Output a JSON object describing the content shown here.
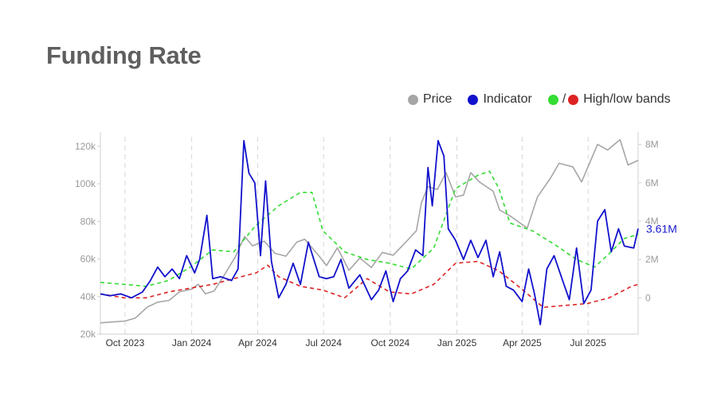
{
  "title": "Funding Rate",
  "legend": {
    "price": "Price",
    "indicator": "Indicator",
    "bands_sep": "/",
    "bands": "High/low bands"
  },
  "colors": {
    "price": "#a6a6a6",
    "indicator": "#1111cc",
    "high_band": "#33dd33",
    "low_band": "#dd2222"
  },
  "chart_data": {
    "type": "line",
    "x_ticks": [
      {
        "label": "Oct 2023",
        "date": "2023-10-01"
      },
      {
        "label": "Jan 2024",
        "date": "2024-01-01"
      },
      {
        "label": "Apr 2024",
        "date": "2024-04-01"
      },
      {
        "label": "Jul 2024",
        "date": "2024-07-01"
      },
      {
        "label": "Oct 2024",
        "date": "2024-10-01"
      },
      {
        "label": "Jan 2025",
        "date": "2025-01-01"
      },
      {
        "label": "Apr 2025",
        "date": "2025-04-01"
      },
      {
        "label": "Jul 2025",
        "date": "2025-07-01"
      }
    ],
    "xlim": [
      "2023-08-28",
      "2025-09-08"
    ],
    "left_axis": {
      "ticks": [
        "20k",
        "40k",
        "60k",
        "80k",
        "100k",
        "120k"
      ],
      "ylim": [
        20000,
        125000
      ]
    },
    "right_axis": {
      "ticks": [
        "0",
        "2M",
        "4M",
        "6M",
        "8M"
      ],
      "ylim": [
        -1900000,
        8400000
      ]
    },
    "grid": "vertical dashed",
    "last_value_label": "3.61M",
    "series": [
      {
        "name": "Price",
        "axis": "left",
        "points": [
          [
            "2023-08-28",
            26000
          ],
          [
            "2023-09-15",
            26500
          ],
          [
            "2023-10-01",
            27000
          ],
          [
            "2023-10-15",
            28500
          ],
          [
            "2023-11-01",
            34500
          ],
          [
            "2023-11-15",
            37000
          ],
          [
            "2023-12-01",
            38000
          ],
          [
            "2023-12-15",
            42500
          ],
          [
            "2024-01-01",
            44000
          ],
          [
            "2024-01-10",
            46500
          ],
          [
            "2024-01-20",
            41500
          ],
          [
            "2024-02-01",
            43000
          ],
          [
            "2024-02-15",
            51500
          ],
          [
            "2024-03-01",
            61000
          ],
          [
            "2024-03-14",
            72000
          ],
          [
            "2024-03-25",
            67000
          ],
          [
            "2024-04-10",
            69500
          ],
          [
            "2024-04-25",
            63000
          ],
          [
            "2024-05-10",
            61500
          ],
          [
            "2024-05-25",
            69000
          ],
          [
            "2024-06-05",
            70500
          ],
          [
            "2024-06-25",
            61500
          ],
          [
            "2024-07-05",
            56500
          ],
          [
            "2024-07-20",
            66000
          ],
          [
            "2024-08-05",
            54000
          ],
          [
            "2024-08-20",
            60500
          ],
          [
            "2024-09-05",
            55500
          ],
          [
            "2024-09-20",
            63500
          ],
          [
            "2024-10-05",
            62000
          ],
          [
            "2024-10-20",
            68000
          ],
          [
            "2024-11-06",
            75000
          ],
          [
            "2024-11-13",
            90000
          ],
          [
            "2024-11-22",
            98500
          ],
          [
            "2024-12-05",
            97000
          ],
          [
            "2024-12-17",
            106000
          ],
          [
            "2024-12-30",
            93000
          ],
          [
            "2025-01-10",
            94000
          ],
          [
            "2025-01-20",
            106000
          ],
          [
            "2025-02-01",
            101000
          ],
          [
            "2025-02-20",
            96000
          ],
          [
            "2025-03-01",
            86000
          ],
          [
            "2025-03-15",
            83000
          ],
          [
            "2025-04-08",
            76500
          ],
          [
            "2025-04-22",
            93000
          ],
          [
            "2025-05-10",
            103000
          ],
          [
            "2025-05-22",
            111000
          ],
          [
            "2025-06-10",
            109000
          ],
          [
            "2025-06-22",
            101000
          ],
          [
            "2025-07-14",
            121000
          ],
          [
            "2025-07-28",
            118000
          ],
          [
            "2025-08-14",
            123500
          ],
          [
            "2025-08-25",
            110000
          ],
          [
            "2025-09-08",
            112500
          ]
        ]
      },
      {
        "name": "Indicator",
        "axis": "right",
        "points": [
          [
            "2023-08-28",
            200000
          ],
          [
            "2023-09-10",
            100000
          ],
          [
            "2023-09-25",
            200000
          ],
          [
            "2023-10-10",
            0
          ],
          [
            "2023-10-25",
            300000
          ],
          [
            "2023-11-05",
            900000
          ],
          [
            "2023-11-15",
            1600000
          ],
          [
            "2023-11-25",
            1100000
          ],
          [
            "2023-12-05",
            1500000
          ],
          [
            "2023-12-15",
            1000000
          ],
          [
            "2023-12-25",
            2200000
          ],
          [
            "2024-01-05",
            1300000
          ],
          [
            "2024-01-12",
            2000000
          ],
          [
            "2024-01-22",
            4300000
          ],
          [
            "2024-01-30",
            1000000
          ],
          [
            "2024-02-10",
            1100000
          ],
          [
            "2024-02-25",
            900000
          ],
          [
            "2024-03-05",
            1500000
          ],
          [
            "2024-03-13",
            8200000
          ],
          [
            "2024-03-20",
            6500000
          ],
          [
            "2024-03-28",
            6000000
          ],
          [
            "2024-04-05",
            2200000
          ],
          [
            "2024-04-12",
            6100000
          ],
          [
            "2024-04-20",
            1900000
          ],
          [
            "2024-04-30",
            0
          ],
          [
            "2024-05-10",
            700000
          ],
          [
            "2024-05-20",
            1800000
          ],
          [
            "2024-05-30",
            700000
          ],
          [
            "2024-06-10",
            2900000
          ],
          [
            "2024-06-25",
            1100000
          ],
          [
            "2024-07-05",
            1000000
          ],
          [
            "2024-07-15",
            1100000
          ],
          [
            "2024-07-25",
            2000000
          ],
          [
            "2024-08-05",
            500000
          ],
          [
            "2024-08-20",
            1200000
          ],
          [
            "2024-09-05",
            -100000
          ],
          [
            "2024-09-15",
            400000
          ],
          [
            "2024-09-25",
            1400000
          ],
          [
            "2024-10-05",
            -200000
          ],
          [
            "2024-10-15",
            1000000
          ],
          [
            "2024-10-25",
            1400000
          ],
          [
            "2024-11-05",
            2500000
          ],
          [
            "2024-11-15",
            2200000
          ],
          [
            "2024-11-22",
            6800000
          ],
          [
            "2024-11-28",
            4800000
          ],
          [
            "2024-12-06",
            8200000
          ],
          [
            "2024-12-14",
            7400000
          ],
          [
            "2024-12-20",
            3600000
          ],
          [
            "2024-12-30",
            3000000
          ],
          [
            "2025-01-10",
            2000000
          ],
          [
            "2025-01-20",
            3000000
          ],
          [
            "2025-01-30",
            2100000
          ],
          [
            "2025-02-10",
            3000000
          ],
          [
            "2025-02-20",
            1100000
          ],
          [
            "2025-03-01",
            2400000
          ],
          [
            "2025-03-10",
            600000
          ],
          [
            "2025-03-20",
            400000
          ],
          [
            "2025-04-01",
            -200000
          ],
          [
            "2025-04-10",
            1500000
          ],
          [
            "2025-04-18",
            200000
          ],
          [
            "2025-04-26",
            -1400000
          ],
          [
            "2025-05-05",
            1500000
          ],
          [
            "2025-05-15",
            2200000
          ],
          [
            "2025-05-25",
            1100000
          ],
          [
            "2025-06-05",
            -100000
          ],
          [
            "2025-06-15",
            2600000
          ],
          [
            "2025-06-25",
            -300000
          ],
          [
            "2025-07-05",
            400000
          ],
          [
            "2025-07-14",
            4000000
          ],
          [
            "2025-07-24",
            4600000
          ],
          [
            "2025-08-02",
            2400000
          ],
          [
            "2025-08-12",
            3600000
          ],
          [
            "2025-08-20",
            2700000
          ],
          [
            "2025-09-02",
            2600000
          ],
          [
            "2025-09-08",
            3610000
          ]
        ]
      },
      {
        "name": "High band",
        "axis": "right",
        "points": [
          [
            "2023-08-28",
            800000
          ],
          [
            "2023-09-30",
            700000
          ],
          [
            "2023-10-30",
            600000
          ],
          [
            "2023-11-30",
            900000
          ],
          [
            "2023-12-30",
            1600000
          ],
          [
            "2024-01-30",
            2500000
          ],
          [
            "2024-02-28",
            2400000
          ],
          [
            "2024-03-30",
            3800000
          ],
          [
            "2024-04-30",
            4800000
          ],
          [
            "2024-05-30",
            5500000
          ],
          [
            "2024-06-15",
            5500000
          ],
          [
            "2024-06-30",
            3500000
          ],
          [
            "2024-07-30",
            2400000
          ],
          [
            "2024-08-30",
            2000000
          ],
          [
            "2024-09-30",
            1800000
          ],
          [
            "2024-10-30",
            1500000
          ],
          [
            "2024-11-30",
            2600000
          ],
          [
            "2024-12-30",
            5700000
          ],
          [
            "2025-01-30",
            6400000
          ],
          [
            "2025-02-15",
            6600000
          ],
          [
            "2025-02-28",
            5700000
          ],
          [
            "2025-03-15",
            3900000
          ],
          [
            "2025-04-15",
            3500000
          ],
          [
            "2025-05-15",
            2800000
          ],
          [
            "2025-06-15",
            2000000
          ],
          [
            "2025-07-10",
            1600000
          ],
          [
            "2025-07-30",
            2300000
          ],
          [
            "2025-08-20",
            3100000
          ],
          [
            "2025-09-08",
            3300000
          ]
        ]
      },
      {
        "name": "Low band",
        "axis": "right",
        "points": [
          [
            "2023-08-28",
            200000
          ],
          [
            "2023-09-30",
            0
          ],
          [
            "2023-10-30",
            0
          ],
          [
            "2023-11-30",
            300000
          ],
          [
            "2023-12-30",
            500000
          ],
          [
            "2024-01-30",
            700000
          ],
          [
            "2024-02-28",
            1000000
          ],
          [
            "2024-03-30",
            1300000
          ],
          [
            "2024-04-15",
            1700000
          ],
          [
            "2024-04-30",
            1100000
          ],
          [
            "2024-05-30",
            600000
          ],
          [
            "2024-06-30",
            400000
          ],
          [
            "2024-07-30",
            0
          ],
          [
            "2024-08-30",
            1000000
          ],
          [
            "2024-09-30",
            300000
          ],
          [
            "2024-10-30",
            200000
          ],
          [
            "2024-11-30",
            700000
          ],
          [
            "2024-12-30",
            1800000
          ],
          [
            "2025-01-30",
            1900000
          ],
          [
            "2025-02-28",
            1400000
          ],
          [
            "2025-03-30",
            500000
          ],
          [
            "2025-04-30",
            -500000
          ],
          [
            "2025-05-30",
            -400000
          ],
          [
            "2025-06-30",
            -300000
          ],
          [
            "2025-07-30",
            0
          ],
          [
            "2025-08-30",
            600000
          ],
          [
            "2025-09-08",
            700000
          ]
        ]
      }
    ]
  }
}
